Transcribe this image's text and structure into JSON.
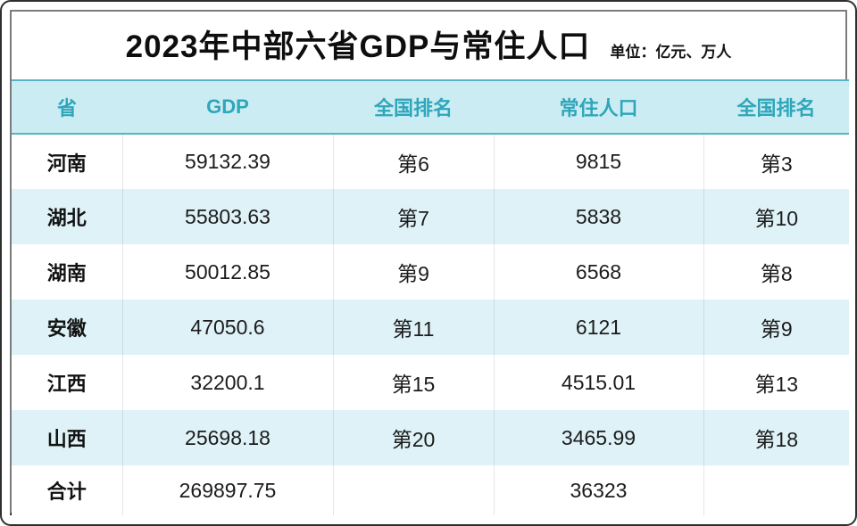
{
  "page": {
    "title": "2023年中部六省GDP与常住人口",
    "unit_note": "单位：亿元、万人"
  },
  "colors": {
    "header_background": "#cbecf3",
    "header_text": "#2fa6b9",
    "header_border": "#58b4c4",
    "zebra_row_background": "#def2f8",
    "frame_border": "#7c7c7c",
    "frame_bottom_border": "#1d1d1d",
    "body_text": "#1c1c1c"
  },
  "chart_data": {
    "type": "table",
    "title": "2023年中部六省GDP与常住人口",
    "unit": "亿元、万人",
    "columns": [
      "省",
      "GDP",
      "全国排名",
      "常住人口",
      "全国排名"
    ],
    "rows": [
      [
        "河南",
        "59132.39",
        "第6",
        "9815",
        "第3"
      ],
      [
        "湖北",
        "55803.63",
        "第7",
        "5838",
        "第10"
      ],
      [
        "湖南",
        "50012.85",
        "第9",
        "6568",
        "第8"
      ],
      [
        "安徽",
        "47050.6",
        "第11",
        "6121",
        "第9"
      ],
      [
        "江西",
        "32200.1",
        "第15",
        "4515.01",
        "第13"
      ],
      [
        "山西",
        "25698.18",
        "第20",
        "3465.99",
        "第18"
      ],
      [
        "合计",
        "269897.75",
        "",
        "36323",
        ""
      ]
    ]
  }
}
